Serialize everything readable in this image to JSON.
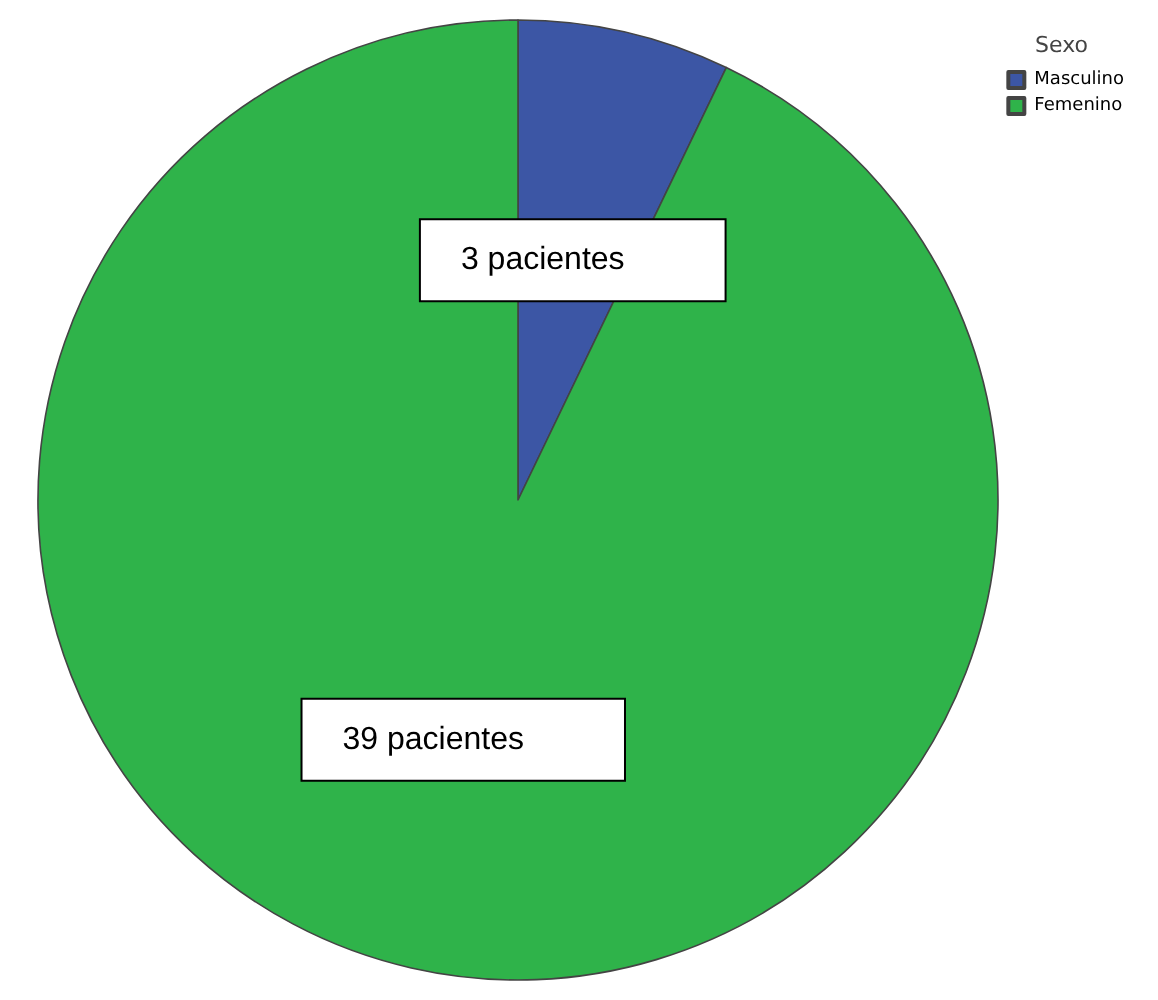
{
  "chart_data": {
    "type": "pie",
    "legend_title": "Sexo",
    "legend": "top right",
    "categories": [
      "Masculino",
      "Femenino"
    ],
    "values": [
      3,
      39
    ],
    "colors": [
      "#3c56a5",
      "#2fb34a"
    ],
    "value_labels": [
      "3 pacientes",
      "39 pacientes"
    ]
  }
}
